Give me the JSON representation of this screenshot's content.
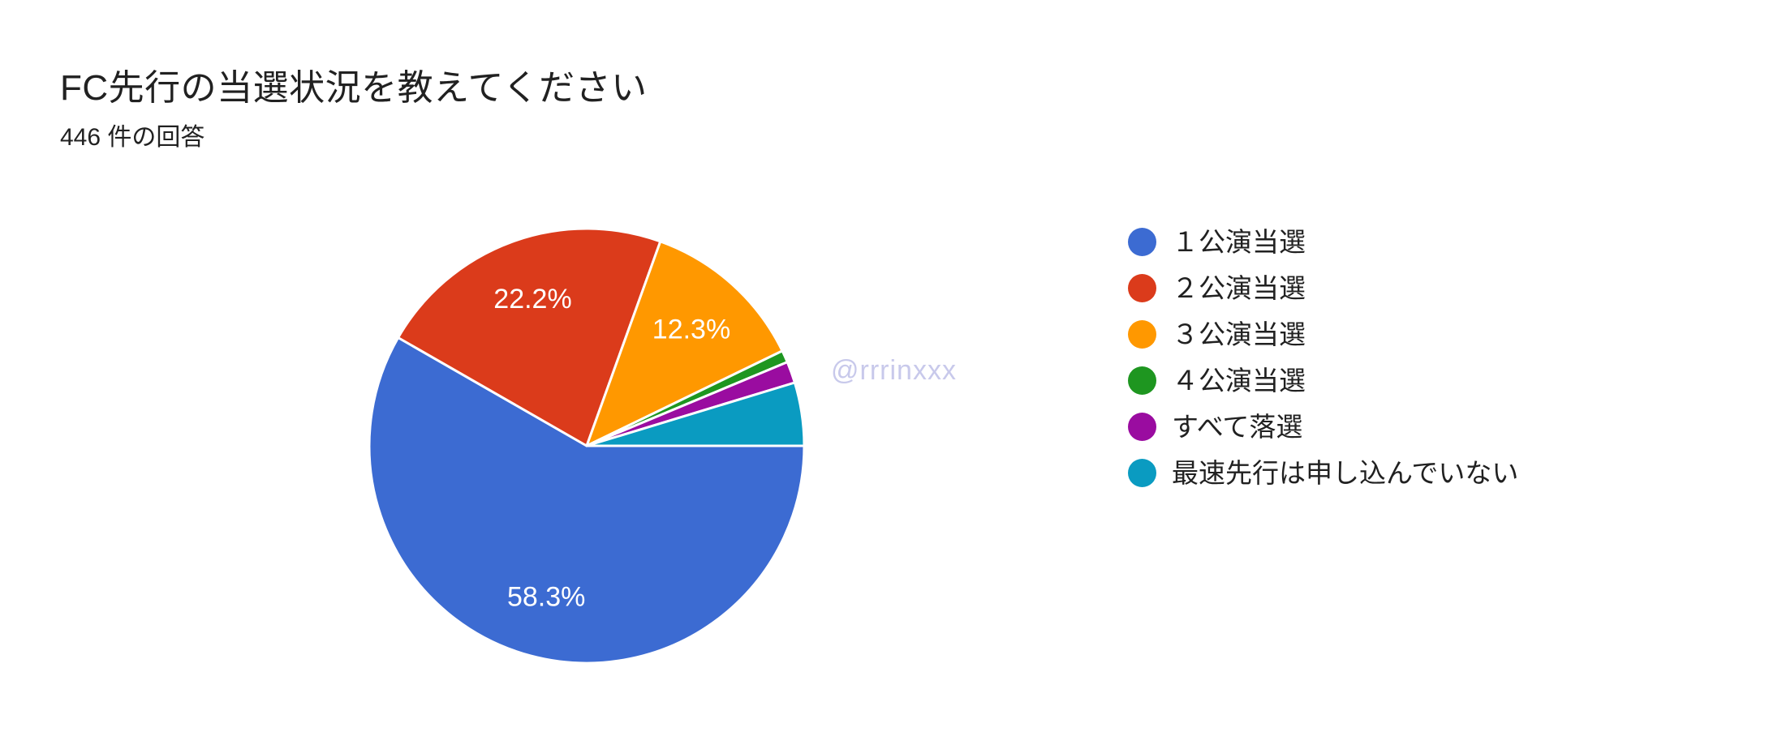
{
  "header": {
    "title": "FC先行の当選状況を教えてください",
    "response_count": "446 件の回答"
  },
  "watermark": {
    "text": "@rrrinxxx",
    "color": "#C8C9EB"
  },
  "chart_data": {
    "type": "pie",
    "title": "FC先行の当選状況を教えてください",
    "subtitle": "446 件の回答",
    "total_responses_shown": "446",
    "legend_position": "right",
    "start_angle_deg": 0,
    "direction": "clockwise",
    "slices": [
      {
        "label": "１公演当選",
        "value_pct": 58.3,
        "display_label": "58.3%",
        "color": "#3C6BD2"
      },
      {
        "label": "２公演当選",
        "value_pct": 22.2,
        "display_label": "22.2%",
        "color": "#DB3B1B"
      },
      {
        "label": "３公演当選",
        "value_pct": 12.3,
        "display_label": "12.3%",
        "color": "#FF9800"
      },
      {
        "label": "４公演当選",
        "value_pct": 0.9,
        "display_label": "",
        "color": "#1E9620"
      },
      {
        "label": "すべて落選",
        "value_pct": 1.6,
        "display_label": "",
        "color": "#9A0CA0"
      },
      {
        "label": "最速先行は申し込んでいない",
        "value_pct": 4.7,
        "display_label": "",
        "color": "#0A9BC1"
      }
    ]
  }
}
